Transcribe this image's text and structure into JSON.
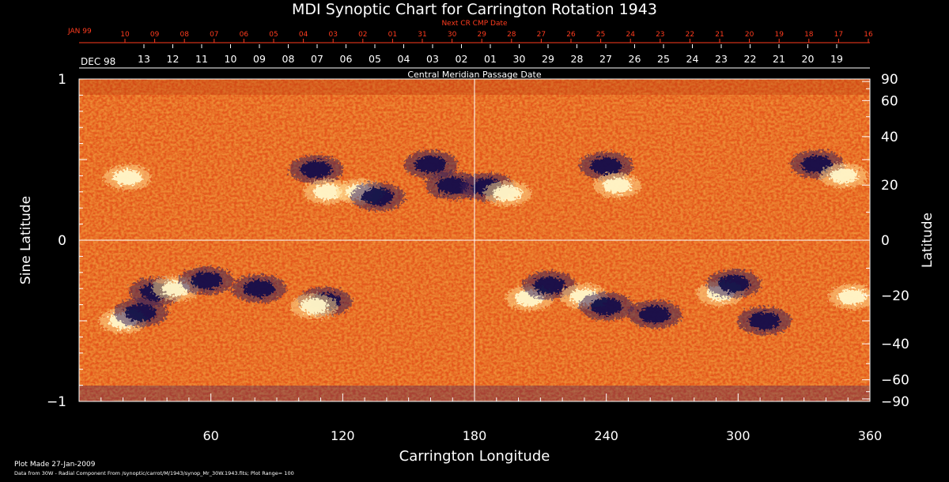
{
  "chart_data": {
    "type": "heatmap",
    "title": "MDI Synoptic Chart for Carrington Rotation 1943",
    "top_axis": {
      "title": "Next CR CMP Date",
      "month_label": "JAN 99",
      "ticks": [
        "10",
        "09",
        "08",
        "07",
        "06",
        "05",
        "04",
        "03",
        "02",
        "01",
        "31",
        "30",
        "29",
        "28",
        "27",
        "26",
        "25",
        "24",
        "23",
        "22",
        "21",
        "20",
        "19",
        "18",
        "17",
        "16"
      ]
    },
    "middle_axis": {
      "title": "Central Meridian Passage Date",
      "month_label": "DEC 98",
      "ticks": [
        "13",
        "12",
        "11",
        "10",
        "09",
        "08",
        "07",
        "06",
        "05",
        "04",
        "03",
        "02",
        "01",
        "30",
        "29",
        "28",
        "27",
        "26",
        "25",
        "24",
        "23",
        "22",
        "21",
        "20",
        "19"
      ]
    },
    "xlabel": "Carrington Longitude",
    "xlim": [
      0,
      360
    ],
    "xticks": [
      "60",
      "120",
      "180",
      "240",
      "300",
      "360"
    ],
    "ylabel_left": "Sine Latitude",
    "ylim_left": [
      -1,
      1
    ],
    "yticks_left": [
      "1",
      "0",
      "−1"
    ],
    "ylabel_right": "Latitude",
    "yticks_right": [
      "90",
      "60",
      "40",
      "20",
      "0",
      "−20",
      "−40",
      "−60",
      "−90"
    ],
    "grid": "lines at longitude 180 and sine latitude 0",
    "colors": {
      "background": "#000000",
      "field_base": "#e85a14",
      "positive": "#fff6c8",
      "negative": "#14104a",
      "red_axis": "#ff3b1e"
    },
    "active_regions": [
      {
        "lon": 22,
        "lat": 0.39,
        "polarity": "positive"
      },
      {
        "lon": 108,
        "lat": 0.44,
        "polarity": "negative"
      },
      {
        "lon": 113,
        "lat": 0.3,
        "polarity": "positive"
      },
      {
        "lon": 128,
        "lat": 0.3,
        "polarity": "positive"
      },
      {
        "lon": 136,
        "lat": 0.27,
        "polarity": "negative"
      },
      {
        "lon": 160,
        "lat": 0.47,
        "polarity": "negative"
      },
      {
        "lon": 170,
        "lat": 0.34,
        "polarity": "negative"
      },
      {
        "lon": 186,
        "lat": 0.33,
        "polarity": "negative"
      },
      {
        "lon": 195,
        "lat": 0.29,
        "polarity": "positive"
      },
      {
        "lon": 240,
        "lat": 0.46,
        "polarity": "negative"
      },
      {
        "lon": 245,
        "lat": 0.34,
        "polarity": "positive"
      },
      {
        "lon": 336,
        "lat": 0.47,
        "polarity": "negative"
      },
      {
        "lon": 348,
        "lat": 0.4,
        "polarity": "positive"
      },
      {
        "lon": 20,
        "lat": -0.5,
        "polarity": "positive"
      },
      {
        "lon": 28,
        "lat": -0.45,
        "polarity": "negative"
      },
      {
        "lon": 35,
        "lat": -0.32,
        "polarity": "negative"
      },
      {
        "lon": 44,
        "lat": -0.3,
        "polarity": "positive"
      },
      {
        "lon": 58,
        "lat": -0.25,
        "polarity": "negative"
      },
      {
        "lon": 82,
        "lat": -0.3,
        "polarity": "negative"
      },
      {
        "lon": 112,
        "lat": -0.38,
        "polarity": "negative"
      },
      {
        "lon": 107,
        "lat": -0.41,
        "polarity": "positive"
      },
      {
        "lon": 205,
        "lat": -0.36,
        "polarity": "positive"
      },
      {
        "lon": 214,
        "lat": -0.28,
        "polarity": "negative"
      },
      {
        "lon": 230,
        "lat": -0.35,
        "polarity": "positive"
      },
      {
        "lon": 240,
        "lat": -0.41,
        "polarity": "negative"
      },
      {
        "lon": 262,
        "lat": -0.46,
        "polarity": "negative"
      },
      {
        "lon": 292,
        "lat": -0.33,
        "polarity": "positive"
      },
      {
        "lon": 298,
        "lat": -0.27,
        "polarity": "negative"
      },
      {
        "lon": 312,
        "lat": -0.5,
        "polarity": "negative"
      },
      {
        "lon": 352,
        "lat": -0.35,
        "polarity": "positive"
      }
    ]
  },
  "footer": {
    "plot_made": "Plot Made 27-Jan-2009",
    "source": "Data from 30W - Radial Component From /synoptic/carrot/M/1943/synop_Mr_30W.1943.fits; Plot Range=  100"
  }
}
